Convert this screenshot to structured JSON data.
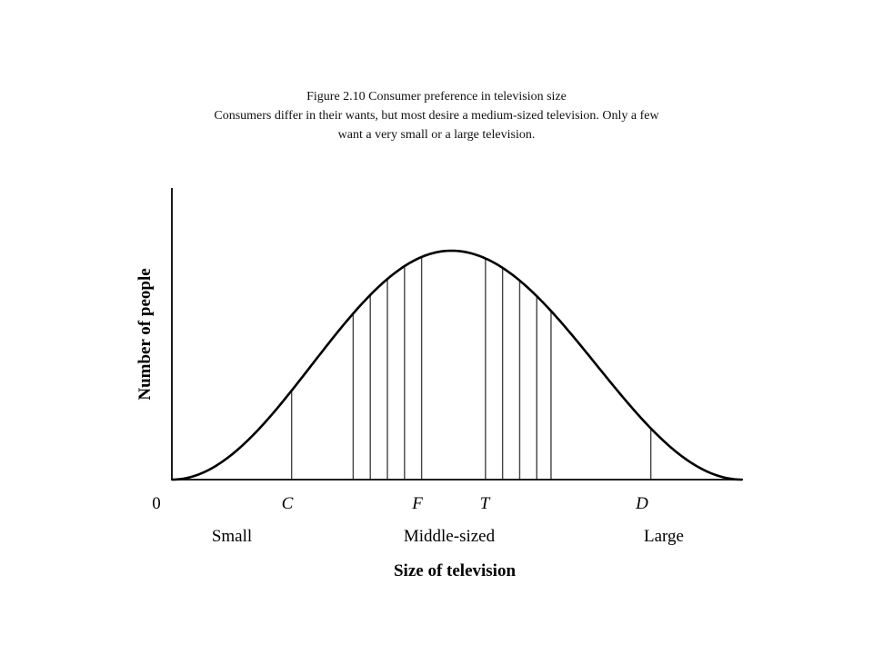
{
  "caption": {
    "line1": "Figure 2.10 Consumer preference in television size",
    "line2": "Consumers differ in their wants, but most desire a medium-sized television.  Only a few",
    "line3": "want a very small  or a large television."
  },
  "chart_data": {
    "type": "area",
    "title": "",
    "xlabel": "Size of television",
    "ylabel": "Number of people",
    "x_ticks": [
      {
        "label": "0",
        "italic": false
      },
      {
        "label": "C",
        "italic": true
      },
      {
        "label": "F",
        "italic": true
      },
      {
        "label": "T",
        "italic": true
      },
      {
        "label": "D",
        "italic": true
      }
    ],
    "x_ticks_pos": [
      0,
      0.21,
      0.435,
      0.55,
      0.83
    ],
    "region_labels": [
      "Small",
      "Middle-sized",
      "Large"
    ],
    "curve": "bell-shaped distribution, peak at middle size",
    "peak_x": 0.49,
    "vertical_line_positions": [
      0.21,
      0.318,
      0.348,
      0.378,
      0.408,
      0.438,
      0.55,
      0.58,
      0.61,
      0.64,
      0.665,
      0.84
    ],
    "grid": false,
    "legend": "none"
  }
}
